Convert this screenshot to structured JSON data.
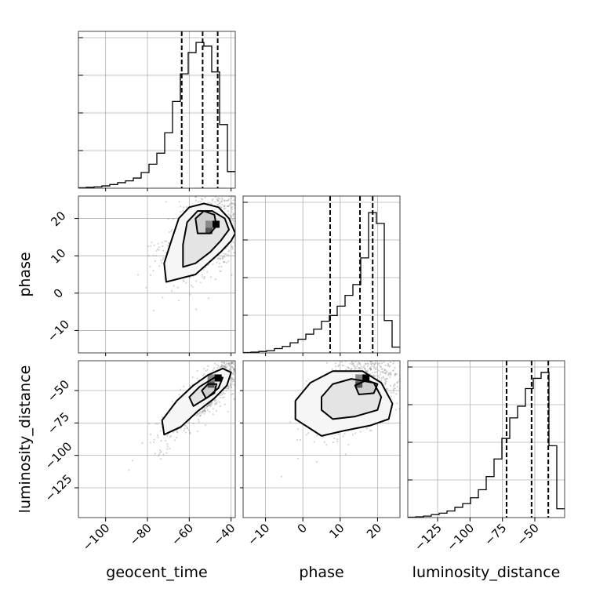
{
  "chart_data": {
    "type": "corner",
    "parameters": [
      "geocent_time",
      "phase",
      "luminosity_distance"
    ],
    "axis_labels": {
      "geocent_time": "geocent_time",
      "phase": "phase",
      "luminosity_distance": "luminosity_distance"
    },
    "ranges": {
      "geocent_time": [
        -113,
        -38
      ],
      "phase": [
        -16,
        26
      ],
      "luminosity_distance": [
        -148,
        -27
      ]
    },
    "ticks": {
      "geocent_time": [
        {
          "v": -100,
          "label": "−100"
        },
        {
          "v": -80,
          "label": "−80"
        },
        {
          "v": -60,
          "label": "−60"
        },
        {
          "v": -40,
          "label": "−40"
        }
      ],
      "phase": [
        {
          "v": -10,
          "label": "−10"
        },
        {
          "v": 0,
          "label": "0"
        },
        {
          "v": 10,
          "label": "10"
        },
        {
          "v": 20,
          "label": "20"
        }
      ],
      "luminosity_distance": [
        {
          "v": -125,
          "label": "−125"
        },
        {
          "v": -100,
          "label": "−100"
        },
        {
          "v": -75,
          "label": "−75"
        },
        {
          "v": -50,
          "label": "−50"
        }
      ]
    },
    "histograms": {
      "geocent_time": {
        "bin_edges": [
          -113,
          -109.25,
          -105.5,
          -101.75,
          -98,
          -94.25,
          -90.5,
          -86.75,
          -83,
          -79.25,
          -75.5,
          -71.75,
          -68,
          -64.25,
          -60.5,
          -56.75,
          -53,
          -49.25,
          -45.5,
          -41.75,
          -38
        ],
        "counts": [
          0.5,
          1,
          1.5,
          2.5,
          4,
          6,
          8,
          11,
          17,
          26,
          38,
          60,
          94,
          124,
          147,
          158,
          154,
          126,
          69,
          18
        ],
        "quantiles": [
          -63.6,
          -53.6,
          -46.4
        ],
        "ymax": 170
      },
      "phase": {
        "bin_edges": [
          -16,
          -13.9,
          -11.8,
          -9.7,
          -7.6,
          -5.5,
          -3.4,
          -1.3,
          0.8,
          2.9,
          5,
          7.1,
          9.2,
          11.3,
          13.4,
          15.5,
          17.6,
          19.7,
          21.8,
          23.9,
          26
        ],
        "counts": [
          0.5,
          1,
          2,
          3,
          6,
          9,
          14,
          19,
          26,
          33,
          44,
          52,
          65,
          80,
          95,
          132,
          195,
          180,
          45,
          8
        ],
        "quantiles": [
          7.3,
          15.3,
          18.7
        ],
        "ymax": 218
      },
      "luminosity_distance": {
        "bin_edges": [
          -148,
          -141.95,
          -135.9,
          -129.85,
          -123.8,
          -117.75,
          -111.7,
          -105.65,
          -99.6,
          -93.55,
          -87.5,
          -81.45,
          -75.4,
          -69.35,
          -63.3,
          -57.25,
          -51.2,
          -45.15,
          -39.1,
          -33.05,
          -27
        ],
        "counts": [
          0.5,
          1,
          2,
          4,
          6,
          9,
          14,
          19,
          27,
          38,
          56,
          80,
          108,
          136,
          152,
          176,
          190,
          198,
          98,
          12
        ],
        "quantiles": [
          -71.8,
          -52.5,
          -39.6
        ],
        "ymax": 214
      }
    },
    "pairs": [
      {
        "x": "geocent_time",
        "y": "phase",
        "contours": [
          [
            [
              -71,
              3
            ],
            [
              -64,
              4
            ],
            [
              -57,
              5
            ],
            [
              -51,
              8
            ],
            [
              -45,
              11
            ],
            [
              -40,
              14
            ],
            [
              -38,
              16
            ],
            [
              -41,
              20
            ],
            [
              -46,
              23
            ],
            [
              -53,
              24
            ],
            [
              -60,
              23
            ],
            [
              -65,
              20
            ],
            [
              -68,
              15
            ],
            [
              -72,
              8
            ]
          ],
          [
            [
              -63,
              7
            ],
            [
              -57,
              8
            ],
            [
              -50,
              11
            ],
            [
              -45,
              14
            ],
            [
              -41,
              17
            ],
            [
              -43,
              20
            ],
            [
              -49,
              22
            ],
            [
              -56,
              22
            ],
            [
              -61,
              19
            ],
            [
              -63,
              13
            ]
          ],
          [
            [
              -56,
              16
            ],
            [
              -50,
              16
            ],
            [
              -47,
              18
            ],
            [
              -48,
              21
            ],
            [
              -53,
              22
            ],
            [
              -57,
              20
            ]
          ]
        ],
        "peak": [
          -47,
          17.5
        ]
      },
      {
        "x": "geocent_time",
        "y": "luminosity_distance",
        "contours": [
          [
            [
              -72,
              -84
            ],
            [
              -64,
              -78
            ],
            [
              -56,
              -66
            ],
            [
              -48,
              -56
            ],
            [
              -42,
              -46
            ],
            [
              -40,
              -36
            ],
            [
              -44,
              -33
            ],
            [
              -51,
              -38
            ],
            [
              -58,
              -46
            ],
            [
              -66,
              -58
            ],
            [
              -73,
              -73
            ]
          ],
          [
            [
              -58,
              -62
            ],
            [
              -51,
              -55
            ],
            [
              -46,
              -48
            ],
            [
              -44,
              -40
            ],
            [
              -48,
              -40
            ],
            [
              -55,
              -47
            ],
            [
              -60,
              -55
            ]
          ],
          [
            [
              -52,
              -56
            ],
            [
              -48,
              -52
            ],
            [
              -47,
              -45
            ],
            [
              -51,
              -45
            ],
            [
              -54,
              -50
            ]
          ]
        ],
        "peak": [
          -46,
          -43
        ]
      },
      {
        "x": "phase",
        "y": "luminosity_distance",
        "contours": [
          [
            [
              5,
              -85
            ],
            [
              11,
              -81
            ],
            [
              18,
              -77
            ],
            [
              23,
              -72
            ],
            [
              24,
              -60
            ],
            [
              21,
              -44
            ],
            [
              16,
              -35
            ],
            [
              8,
              -35
            ],
            [
              2,
              -44
            ],
            [
              -2,
              -58
            ],
            [
              -2,
              -72
            ]
          ],
          [
            [
              8,
              -72
            ],
            [
              14,
              -70
            ],
            [
              20,
              -65
            ],
            [
              21,
              -55
            ],
            [
              19,
              -44
            ],
            [
              13,
              -41
            ],
            [
              8,
              -45
            ],
            [
              5,
              -55
            ],
            [
              5,
              -65
            ]
          ],
          [
            [
              15,
              -53
            ],
            [
              19,
              -52
            ],
            [
              20,
              -45
            ],
            [
              17,
              -42
            ],
            [
              14,
              -46
            ]
          ]
        ],
        "peak": [
          17,
          -43
        ]
      }
    ]
  }
}
